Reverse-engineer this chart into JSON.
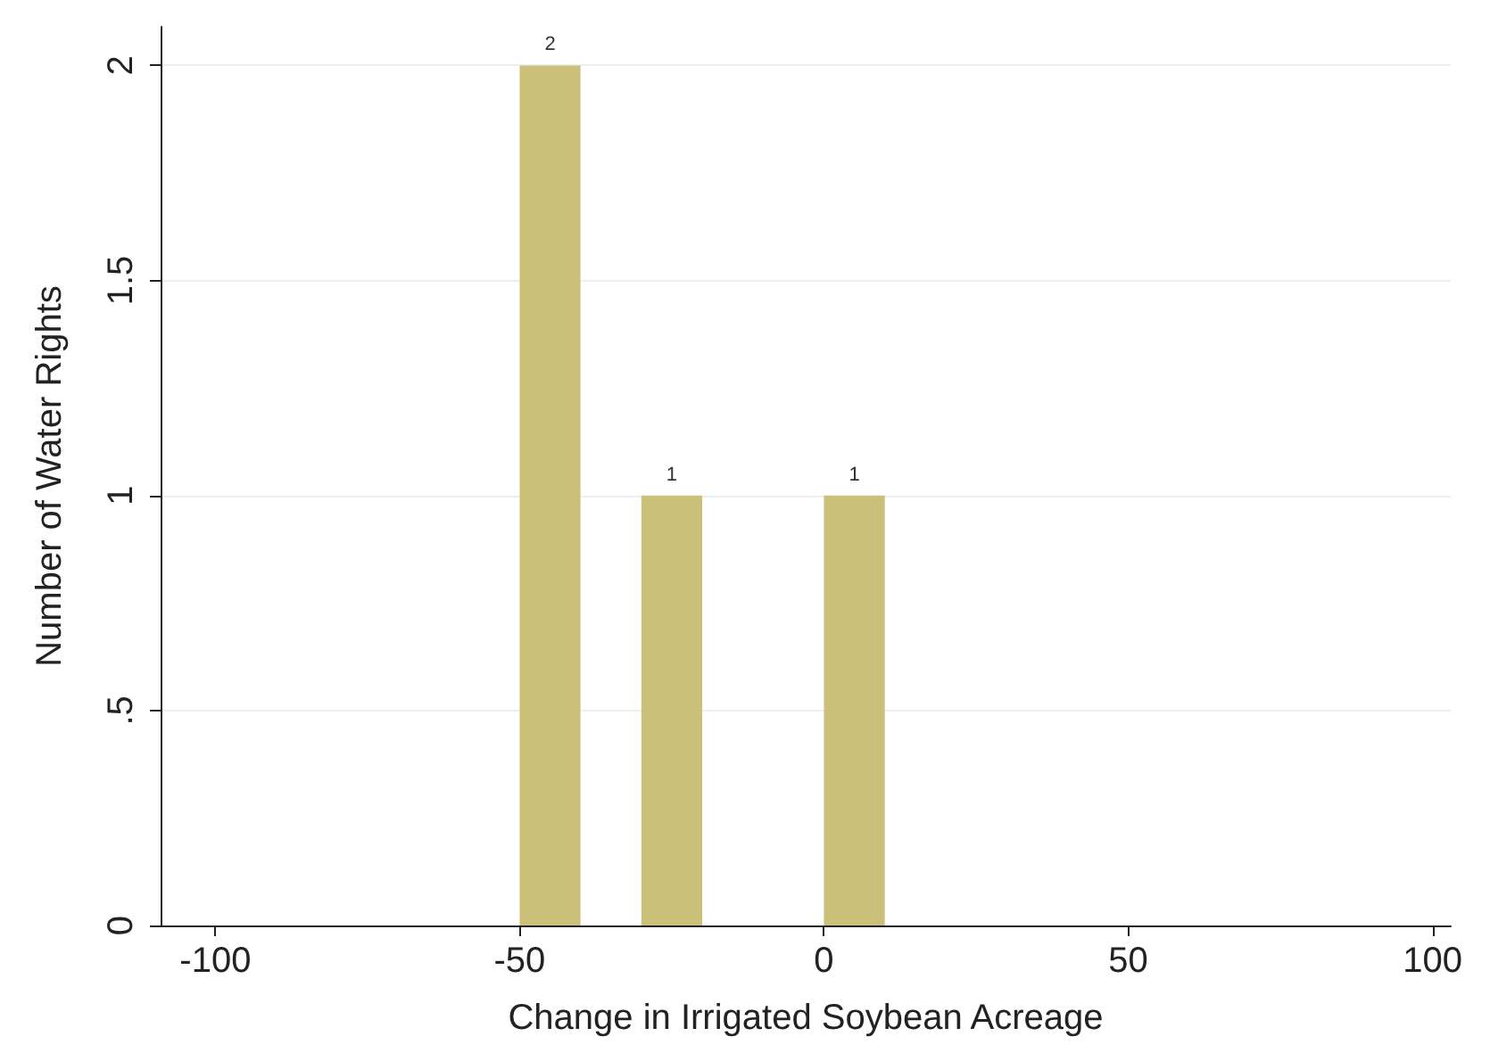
{
  "chart_data": {
    "type": "histogram",
    "xlabel": "Change in Irrigated Soybean Acreage",
    "ylabel": "Number of Water Rights",
    "bins": [
      -50,
      -40,
      -30,
      -20,
      -10,
      0,
      10
    ],
    "values": [
      2,
      0,
      1,
      0,
      0,
      1
    ],
    "value_labels": [
      "2",
      null,
      "1",
      null,
      null,
      "1"
    ],
    "color": "#cbbf7a",
    "xlim": [
      -109,
      103
    ],
    "xticks": [
      -100,
      -50,
      0,
      50,
      100
    ],
    "ylim": [
      0,
      2.09
    ],
    "yticks": [
      {
        "value": 0,
        "label": "0"
      },
      {
        "value": 0.5,
        "label": ".5"
      },
      {
        "value": 1,
        "label": "1"
      },
      {
        "value": 1.5,
        "label": "1.5"
      },
      {
        "value": 2,
        "label": "2"
      }
    ],
    "grid": "y"
  }
}
